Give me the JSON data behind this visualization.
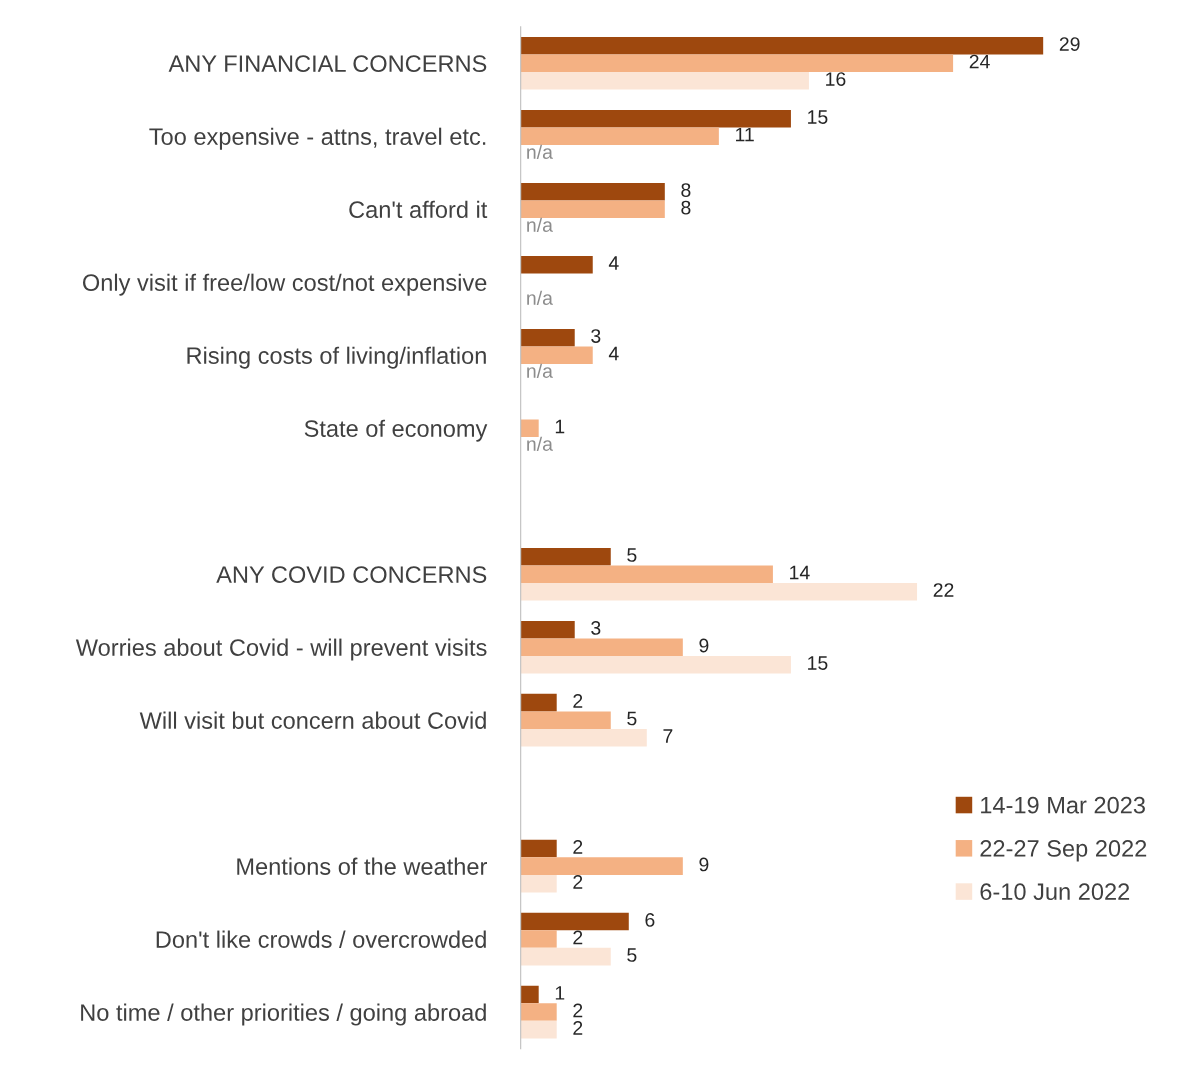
{
  "chart_data": {
    "type": "bar",
    "orientation": "horizontal",
    "data_labels": true,
    "legend": "bottom right",
    "grid": false,
    "categories": [
      "ANY FINANCIAL CONCERNS",
      "Too expensive - attns, travel etc.",
      "Can't afford it",
      "Only visit if free/low cost/not expensive",
      "Rising costs of living/inflation",
      "State of economy",
      null,
      "ANY COVID CONCERNS",
      "Worries about Covid - will prevent visits",
      "Will visit but concern about Covid",
      null,
      "Mentions of the weather",
      "Don't like crowds / overcrowded",
      "No time / other priorities / going abroad"
    ],
    "series": [
      {
        "name": "14-19 Mar 2023",
        "color": "#9e480e",
        "values": [
          29,
          15,
          8,
          4,
          3,
          null,
          null,
          5,
          3,
          2,
          null,
          2,
          6,
          1
        ]
      },
      {
        "name": "22-27 Sep 2022",
        "color": "#f4b183",
        "values": [
          24,
          11,
          8,
          null,
          4,
          1,
          null,
          14,
          9,
          5,
          null,
          9,
          2,
          2
        ]
      },
      {
        "name": "6-10 Jun 2022",
        "color": "#fbe5d6",
        "values": [
          16,
          null,
          null,
          null,
          null,
          null,
          null,
          22,
          15,
          7,
          null,
          2,
          5,
          2
        ],
        "value_labels": [
          "16",
          "n/a",
          "n/a",
          "n/a",
          "n/a",
          "n/a",
          null,
          "22",
          "15",
          "7",
          null,
          "2",
          "5",
          "2"
        ]
      }
    ]
  }
}
